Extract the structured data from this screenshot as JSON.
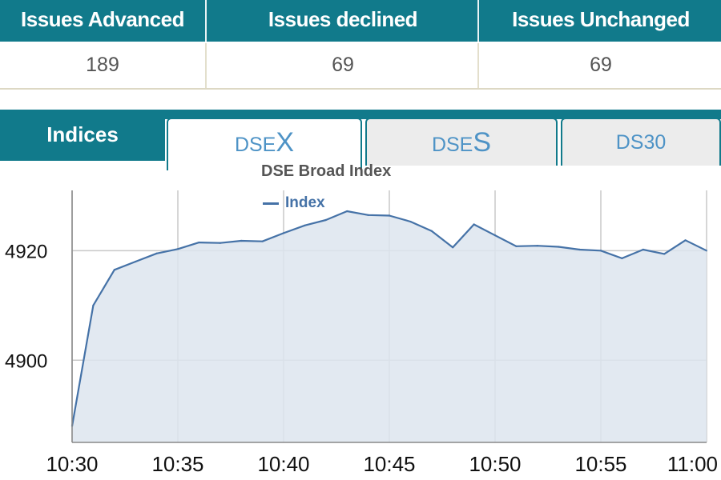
{
  "stats": {
    "headers": [
      "Issues Advanced",
      "Issues declined",
      "Issues Unchanged"
    ],
    "values": [
      "189",
      "69",
      "69"
    ]
  },
  "tabs": {
    "section_label": "Indices",
    "items": [
      {
        "prefix": "DSE",
        "suffix": "X",
        "active": true
      },
      {
        "prefix": "DSE",
        "suffix": "S",
        "active": false
      },
      {
        "prefix": "DS30",
        "suffix": "",
        "active": false
      }
    ]
  },
  "colors": {
    "header_teal": "#117A8B",
    "tab_text": "#4e93c6",
    "series_line": "#4572A7",
    "area_fill": "#dde5ef"
  },
  "chart_data": {
    "type": "area",
    "title": "DSE Broad Index",
    "legend": {
      "label": "Index",
      "position": "top-center"
    },
    "xlabel": "",
    "ylabel": "",
    "x_ticks": [
      "10:30",
      "10:35",
      "10:40",
      "10:45",
      "10:50",
      "10:55",
      "11:00"
    ],
    "y_ticks": [
      4900,
      4920
    ],
    "xlim_minutes": [
      0,
      30
    ],
    "ylim": [
      4885,
      4931
    ],
    "grid": true,
    "series": [
      {
        "name": "Index",
        "x": [
          "10:30",
          "10:31",
          "10:32",
          "10:33",
          "10:34",
          "10:35",
          "10:36",
          "10:37",
          "10:38",
          "10:39",
          "10:40",
          "10:41",
          "10:42",
          "10:43",
          "10:44",
          "10:45",
          "10:46",
          "10:47",
          "10:48",
          "10:49",
          "10:50",
          "10:51",
          "10:52",
          "10:53",
          "10:54",
          "10:55",
          "10:56",
          "10:57",
          "10:58",
          "10:59",
          "11:00"
        ],
        "values": [
          4888,
          4910,
          4916.5,
          4918,
          4919.5,
          4920.3,
          4921.5,
          4921.4,
          4921.8,
          4921.7,
          4923.2,
          4924.6,
          4925.6,
          4927.2,
          4926.5,
          4926.4,
          4925.3,
          4923.6,
          4920.6,
          4924.8,
          4922.8,
          4920.8,
          4920.9,
          4920.7,
          4920.2,
          4920.0,
          4918.6,
          4920.2,
          4919.4,
          4921.9,
          4920.0
        ]
      }
    ]
  }
}
